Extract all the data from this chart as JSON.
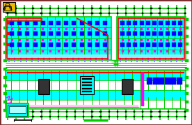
{
  "bg_color": "#ffffff",
  "border_color": "#7a2a2a",
  "green": "#00cc00",
  "cyan": "#00ffff",
  "red": "#ff0000",
  "blue": "#0000ff",
  "magenta": "#ff00ff",
  "black": "#000000",
  "gray": "#888888",
  "dark_gray": "#333333",
  "purple": "#8800aa",
  "figsize": [
    2.76,
    1.79
  ],
  "dpi": 100
}
